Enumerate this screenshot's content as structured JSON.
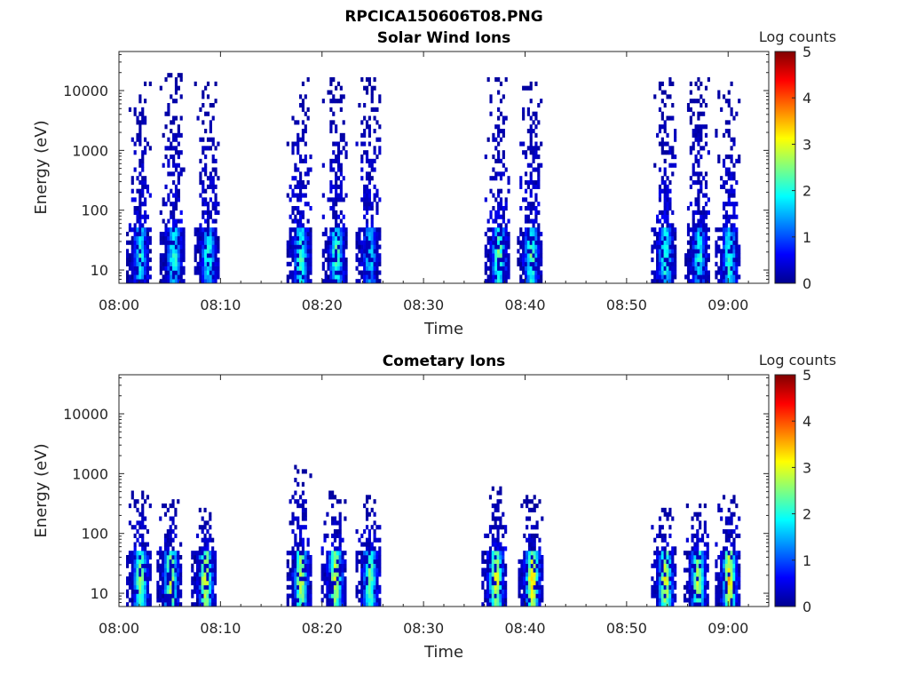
{
  "figure_title": "RPCICA150606T08.PNG",
  "chart_data": [
    {
      "type": "heatmap",
      "title": "Solar Wind Ions",
      "xlabel": "Time",
      "ylabel": "Energy (eV)",
      "yscale": "log",
      "ylim": [
        6,
        45000
      ],
      "xlim_minutes": [
        0,
        64
      ],
      "xticks": [
        {
          "label": "08:00",
          "value": 0
        },
        {
          "label": "08:10",
          "value": 10
        },
        {
          "label": "08:20",
          "value": 20
        },
        {
          "label": "08:30",
          "value": 30
        },
        {
          "label": "08:40",
          "value": 40
        },
        {
          "label": "08:50",
          "value": 50
        },
        {
          "label": "09:00",
          "value": 60
        }
      ],
      "yticks": [
        {
          "label": "10",
          "value": 10
        },
        {
          "label": "100",
          "value": 100
        },
        {
          "label": "1000",
          "value": 1000
        },
        {
          "label": "10000",
          "value": 10000
        }
      ],
      "colorbar": {
        "label": "Log counts",
        "min": 0,
        "max": 5,
        "colormap": "jet",
        "ticks": [
          {
            "label": "0",
            "value": 0
          },
          {
            "label": "1",
            "value": 1
          },
          {
            "label": "2",
            "value": 2
          },
          {
            "label": "3",
            "value": 3
          },
          {
            "label": "4",
            "value": 4
          },
          {
            "label": "5",
            "value": 5
          }
        ]
      },
      "bursts": [
        {
          "t": 2.0,
          "core_log_counts": 2.0,
          "emax": 12000
        },
        {
          "t": 5.3,
          "core_log_counts": 2.2,
          "emax": 18000
        },
        {
          "t": 8.7,
          "core_log_counts": 2.1,
          "emax": 12000
        },
        {
          "t": 17.8,
          "core_log_counts": 2.3,
          "emax": 15000
        },
        {
          "t": 21.3,
          "core_log_counts": 2.4,
          "emax": 15000
        },
        {
          "t": 24.6,
          "core_log_counts": 1.8,
          "emax": 15000
        },
        {
          "t": 37.3,
          "core_log_counts": 2.5,
          "emax": 18000
        },
        {
          "t": 40.5,
          "core_log_counts": 2.4,
          "emax": 15000
        },
        {
          "t": 53.7,
          "core_log_counts": 2.3,
          "emax": 18000
        },
        {
          "t": 57.0,
          "core_log_counts": 2.1,
          "emax": 15000
        },
        {
          "t": 60.0,
          "core_log_counts": 2.2,
          "emax": 15000
        }
      ]
    },
    {
      "type": "heatmap",
      "title": "Cometary Ions",
      "xlabel": "Time",
      "ylabel": "Energy (eV)",
      "yscale": "log",
      "ylim": [
        6,
        45000
      ],
      "xlim_minutes": [
        0,
        64
      ],
      "xticks": [
        {
          "label": "08:00",
          "value": 0
        },
        {
          "label": "08:10",
          "value": 10
        },
        {
          "label": "08:20",
          "value": 20
        },
        {
          "label": "08:30",
          "value": 30
        },
        {
          "label": "08:40",
          "value": 40
        },
        {
          "label": "08:50",
          "value": 50
        },
        {
          "label": "09:00",
          "value": 60
        }
      ],
      "yticks": [
        {
          "label": "10",
          "value": 10
        },
        {
          "label": "100",
          "value": 100
        },
        {
          "label": "1000",
          "value": 1000
        },
        {
          "label": "10000",
          "value": 10000
        }
      ],
      "colorbar": {
        "label": "Log counts",
        "min": 0,
        "max": 5,
        "colormap": "jet",
        "ticks": [
          {
            "label": "0",
            "value": 0
          },
          {
            "label": "1",
            "value": 1
          },
          {
            "label": "2",
            "value": 2
          },
          {
            "label": "3",
            "value": 3
          },
          {
            "label": "4",
            "value": 4
          },
          {
            "label": "5",
            "value": 5
          }
        ]
      },
      "bursts": [
        {
          "t": 2.0,
          "core_log_counts": 2.8,
          "emax": 500
        },
        {
          "t": 5.0,
          "core_log_counts": 3.0,
          "emax": 400
        },
        {
          "t": 8.4,
          "core_log_counts": 3.2,
          "emax": 250
        },
        {
          "t": 17.8,
          "core_log_counts": 3.0,
          "emax": 1300
        },
        {
          "t": 21.2,
          "core_log_counts": 3.1,
          "emax": 500
        },
        {
          "t": 24.6,
          "core_log_counts": 2.6,
          "emax": 400
        },
        {
          "t": 37.0,
          "core_log_counts": 3.3,
          "emax": 600
        },
        {
          "t": 40.6,
          "core_log_counts": 3.5,
          "emax": 400
        },
        {
          "t": 53.7,
          "core_log_counts": 3.2,
          "emax": 300
        },
        {
          "t": 56.9,
          "core_log_counts": 3.0,
          "emax": 300
        },
        {
          "t": 60.0,
          "core_log_counts": 3.4,
          "emax": 500
        }
      ]
    }
  ]
}
